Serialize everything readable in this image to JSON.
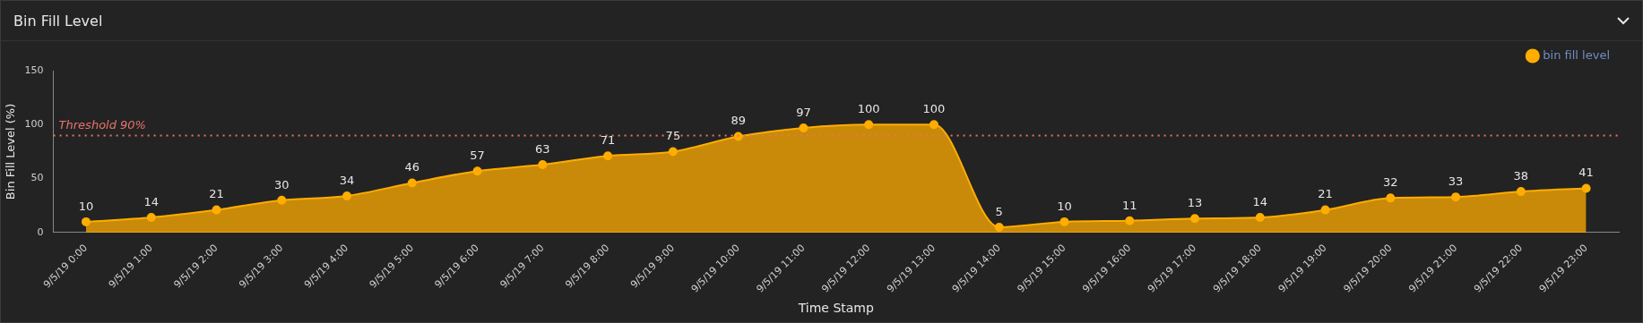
{
  "chart_data": {
    "type": "area",
    "title": "Bin Fill Level",
    "xlabel": "Time Stamp",
    "ylabel": "Bin Fill Level (%)",
    "categories": [
      "9/5/19 0:00",
      "9/5/19 1:00",
      "9/5/19 2:00",
      "9/5/19 3:00",
      "9/5/19 4:00",
      "9/5/19 5:00",
      "9/5/19 6:00",
      "9/5/19 7:00",
      "9/5/19 8:00",
      "9/5/19 9:00",
      "9/5/19 10:00",
      "9/5/19 11:00",
      "9/5/19 12:00",
      "9/5/19 13:00",
      "9/5/19 14:00",
      "9/5/19 15:00",
      "9/5/19 16:00",
      "9/5/19 17:00",
      "9/5/19 18:00",
      "9/5/19 19:00",
      "9/5/19 20:00",
      "9/5/19 21:00",
      "9/5/19 22:00",
      "9/5/19 23:00"
    ],
    "series": [
      {
        "name": "bin fill level",
        "color": "#ffad00",
        "values": [
          10,
          14,
          21,
          30,
          34,
          46,
          57,
          63,
          71,
          75,
          89,
          97,
          100,
          100,
          5,
          10,
          11,
          13,
          14,
          21,
          32,
          33,
          38,
          41
        ]
      }
    ],
    "ylim": [
      0,
      150
    ],
    "yticks": [
      0,
      50,
      100,
      150
    ],
    "grid": false,
    "legend": "top right",
    "marker": "circle",
    "data_labels": true,
    "ref_lines": [
      {
        "axis": "y",
        "value": 90,
        "label": "Threshold 90%",
        "color": "#e8736b",
        "line_style": "dotted"
      }
    ]
  }
}
